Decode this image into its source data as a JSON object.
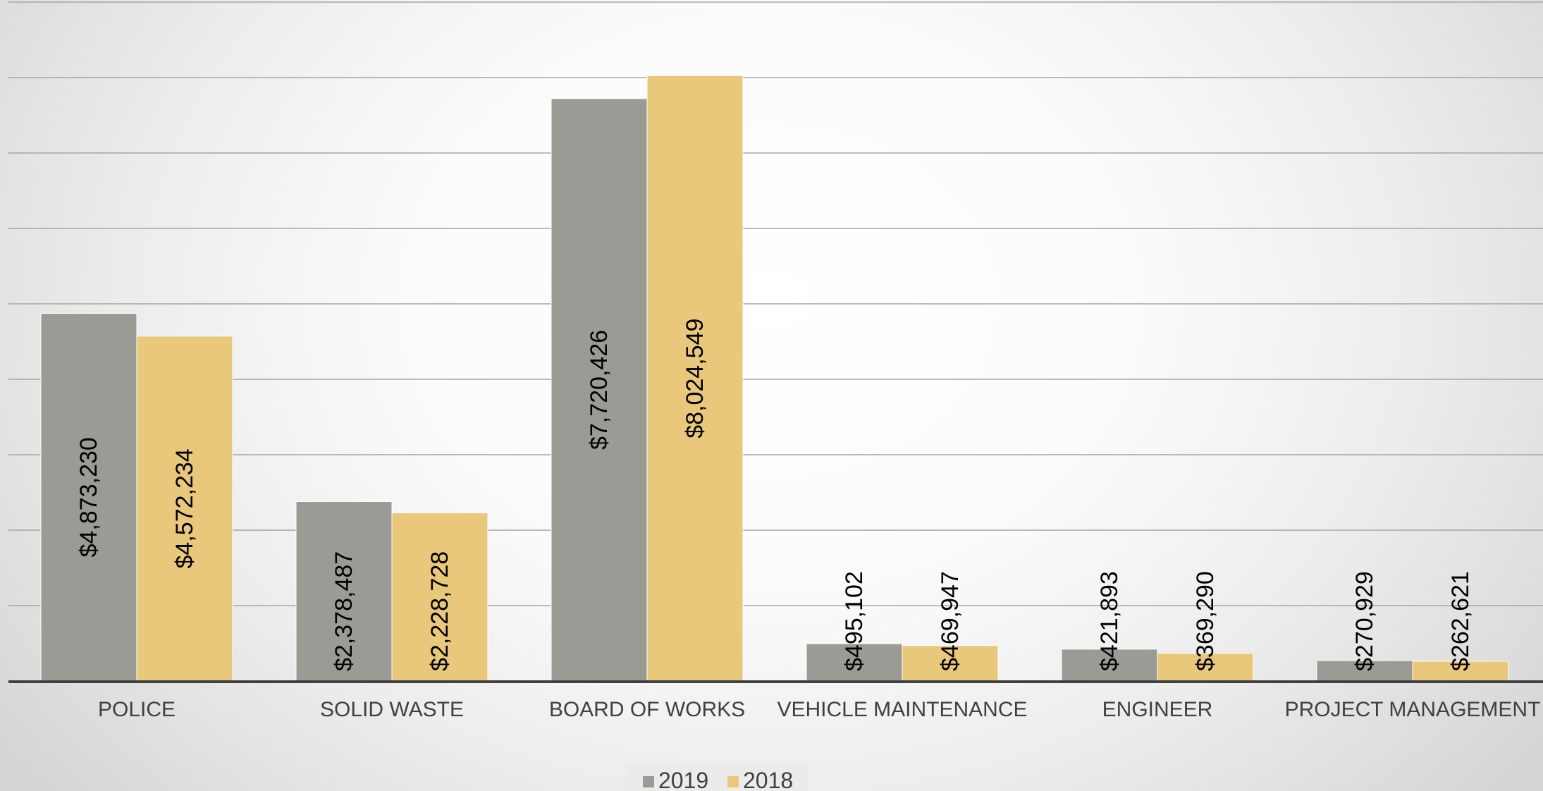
{
  "chart_data": {
    "type": "bar",
    "title": "",
    "xlabel": "",
    "ylabel": "",
    "categories": [
      "POLICE",
      "SOLID WASTE",
      "BOARD OF WORKS",
      "VEHICLE MAINTENANCE",
      "ENGINEER",
      "PROJECT MANAGEMENT"
    ],
    "series": [
      {
        "name": "2019",
        "color": "#9a9b94",
        "values": [
          4873230,
          2378487,
          7720426,
          495102,
          421893,
          270929
        ],
        "labels": [
          "$4,873,230",
          "$2,378,487",
          "$7,720,426",
          "$495,102",
          "$421,893",
          "$270,929"
        ]
      },
      {
        "name": "2018",
        "color": "#e9c87c",
        "values": [
          4572234,
          2228728,
          8024549,
          469947,
          369290,
          262621
        ],
        "labels": [
          "$4,572,234",
          "$2,228,728",
          "$8,024,549",
          "$469,947",
          "$369,290",
          "$262,621"
        ]
      }
    ],
    "ylim": [
      0,
      9000000
    ],
    "gridlines": true,
    "grid_step": 1000000,
    "axis_tick_labels_visible": false,
    "data_label_orientation": "vertical",
    "legend": {
      "position": "bottom",
      "entries": [
        "2019",
        "2018"
      ]
    }
  }
}
